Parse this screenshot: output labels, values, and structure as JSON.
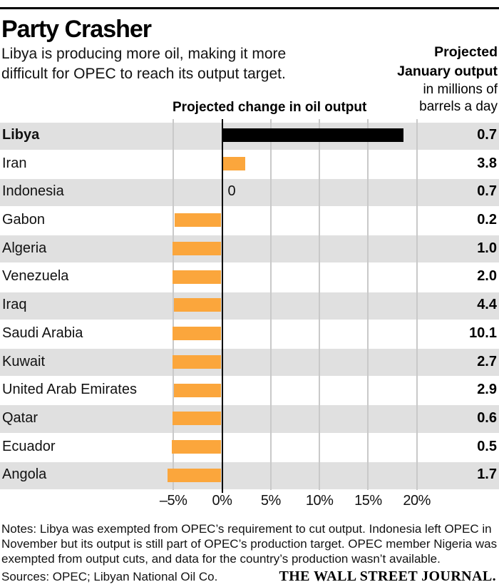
{
  "header": {
    "title": "Party Crasher",
    "subtitle_lines": [
      "Libya is producing more oil, making it more",
      "difficult for OPEC to reach its output target."
    ],
    "right_bold_lines": [
      "Projected",
      "January output"
    ],
    "right_lines": [
      "in millions of",
      "barrels a day"
    ],
    "chart_column_header": "Projected change in oil output"
  },
  "colors": {
    "bar_orange": "#FBA63C",
    "bar_black": "#000000",
    "row_stripe": "#E0E0E0",
    "gridline": "#C9C9C9",
    "zero_line": "#000000"
  },
  "chart_data": {
    "type": "bar",
    "orientation": "horizontal",
    "title": "Projected change in oil output",
    "value_unit": "%",
    "xlim": [
      -7.5,
      23.5
    ],
    "grid": true,
    "ticks": [
      -5,
      0,
      5,
      10,
      15,
      20
    ],
    "tick_labels": [
      "–5%",
      "0%",
      "5%",
      "10%",
      "15%",
      "20%"
    ],
    "secondary_column_header": "Projected January output in millions of barrels a day",
    "rows": [
      {
        "country": "Libya",
        "change_pct": 18.5,
        "output": "0.7",
        "bar_color": "black",
        "emphasis": true
      },
      {
        "country": "Iran",
        "change_pct": 2.3,
        "output": "3.8",
        "bar_color": "orange"
      },
      {
        "country": "Indonesia",
        "change_pct": 0,
        "output": "0.7",
        "bar_color": "none",
        "zero_label": "0"
      },
      {
        "country": "Gabon",
        "change_pct": -4.8,
        "output": "0.2",
        "bar_color": "orange"
      },
      {
        "country": "Algeria",
        "change_pct": -5.0,
        "output": "1.0",
        "bar_color": "orange"
      },
      {
        "country": "Venezuela",
        "change_pct": -5.0,
        "output": "2.0",
        "bar_color": "orange"
      },
      {
        "country": "Iraq",
        "change_pct": -4.9,
        "output": "4.4",
        "bar_color": "orange"
      },
      {
        "country": "Saudi Arabia",
        "change_pct": -5.0,
        "output": "10.1",
        "bar_color": "orange"
      },
      {
        "country": "Kuwait",
        "change_pct": -5.0,
        "output": "2.7",
        "bar_color": "orange"
      },
      {
        "country": "United Arab Emirates",
        "change_pct": -4.9,
        "output": "2.9",
        "bar_color": "orange"
      },
      {
        "country": "Qatar",
        "change_pct": -5.0,
        "output": "0.6",
        "bar_color": "orange"
      },
      {
        "country": "Ecuador",
        "change_pct": -5.1,
        "output": "0.5",
        "bar_color": "orange"
      },
      {
        "country": "Angola",
        "change_pct": -5.5,
        "output": "1.7",
        "bar_color": "orange"
      }
    ]
  },
  "footer": {
    "notes_lines": [
      "Notes: Libya was exempted from OPEC’s requirement to cut output. Indonesia left OPEC in",
      "November but its output is still part of OPEC’s production target. OPEC member Nigeria was",
      "exempted from output cuts, and data for the country’s production wasn’t available."
    ],
    "sources": "Sources: OPEC; Libyan National Oil Co.",
    "brand": "THE WALL STREET JOURNAL."
  }
}
